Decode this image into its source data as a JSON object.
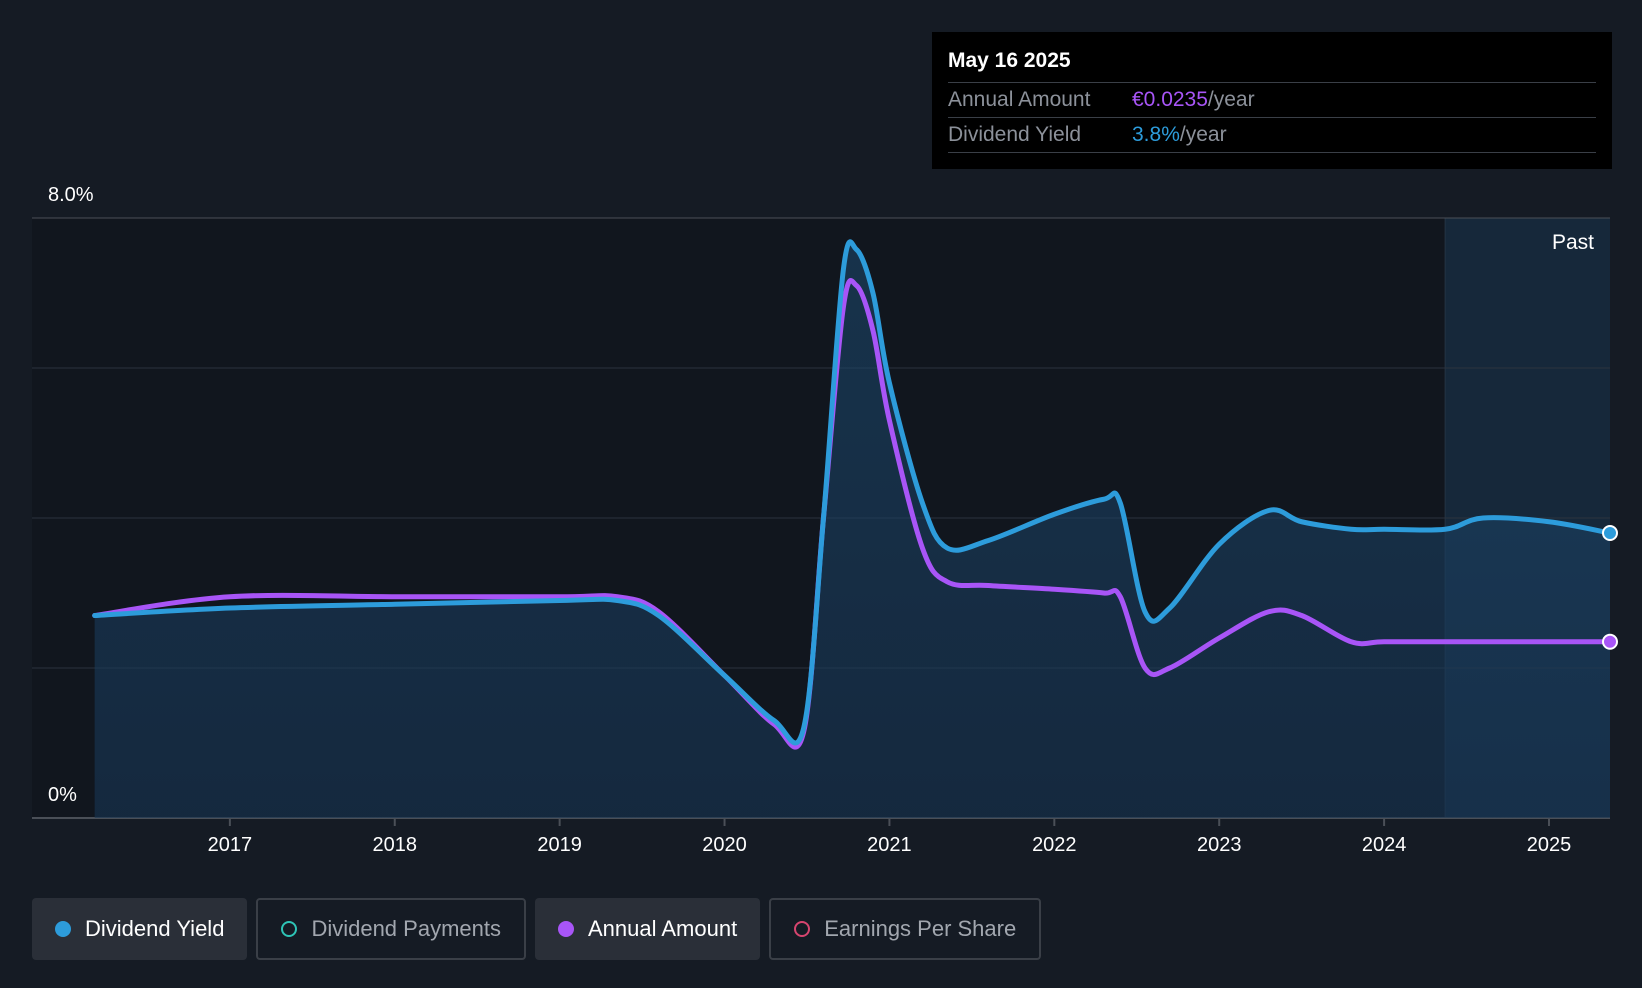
{
  "chart_data": {
    "type": "area",
    "y_axis": {
      "min_label": "0%",
      "max_label": "8.0%",
      "min": 0,
      "max": 8.0,
      "gridlines": [
        0,
        2,
        4,
        6,
        8
      ]
    },
    "x_ticks": [
      "2017",
      "2018",
      "2019",
      "2020",
      "2021",
      "2022",
      "2023",
      "2024",
      "2025"
    ],
    "x_tick_values": [
      2017,
      2018,
      2019,
      2020,
      2021,
      2022,
      2023,
      2024,
      2025
    ],
    "x_range": [
      2015.8,
      2025.37
    ],
    "past_label": "Past",
    "past_start": 2024.37,
    "series": [
      {
        "name": "Dividend Yield",
        "color": "#2d9cdb",
        "filled": true,
        "points": [
          [
            2016.18,
            2.7
          ],
          [
            2017.0,
            2.8
          ],
          [
            2018.0,
            2.85
          ],
          [
            2019.0,
            2.9
          ],
          [
            2019.35,
            2.9
          ],
          [
            2019.6,
            2.7
          ],
          [
            2020.0,
            1.9
          ],
          [
            2020.3,
            1.3
          ],
          [
            2020.48,
            1.2
          ],
          [
            2020.6,
            4.0
          ],
          [
            2020.72,
            7.3
          ],
          [
            2020.8,
            7.58
          ],
          [
            2020.9,
            7.0
          ],
          [
            2021.0,
            5.8
          ],
          [
            2021.2,
            4.2
          ],
          [
            2021.35,
            3.6
          ],
          [
            2021.6,
            3.7
          ],
          [
            2022.0,
            4.05
          ],
          [
            2022.3,
            4.25
          ],
          [
            2022.4,
            4.2
          ],
          [
            2022.55,
            2.75
          ],
          [
            2022.7,
            2.8
          ],
          [
            2023.0,
            3.65
          ],
          [
            2023.3,
            4.1
          ],
          [
            2023.5,
            3.95
          ],
          [
            2023.8,
            3.85
          ],
          [
            2024.0,
            3.85
          ],
          [
            2024.37,
            3.85
          ],
          [
            2024.6,
            4.0
          ],
          [
            2025.0,
            3.95
          ],
          [
            2025.37,
            3.8
          ]
        ]
      },
      {
        "name": "Annual Amount",
        "color": "#a855f7",
        "filled": false,
        "points": [
          [
            2016.18,
            2.7
          ],
          [
            2017.0,
            2.95
          ],
          [
            2018.0,
            2.95
          ],
          [
            2019.0,
            2.95
          ],
          [
            2019.35,
            2.95
          ],
          [
            2019.6,
            2.75
          ],
          [
            2020.0,
            1.9
          ],
          [
            2020.3,
            1.25
          ],
          [
            2020.48,
            1.15
          ],
          [
            2020.6,
            4.0
          ],
          [
            2020.72,
            6.8
          ],
          [
            2020.8,
            7.1
          ],
          [
            2020.9,
            6.5
          ],
          [
            2021.0,
            5.3
          ],
          [
            2021.2,
            3.6
          ],
          [
            2021.35,
            3.15
          ],
          [
            2021.6,
            3.1
          ],
          [
            2022.0,
            3.05
          ],
          [
            2022.3,
            3.0
          ],
          [
            2022.4,
            2.95
          ],
          [
            2022.55,
            2.0
          ],
          [
            2022.7,
            2.0
          ],
          [
            2023.0,
            2.4
          ],
          [
            2023.3,
            2.75
          ],
          [
            2023.5,
            2.7
          ],
          [
            2023.8,
            2.35
          ],
          [
            2024.0,
            2.35
          ],
          [
            2024.37,
            2.35
          ],
          [
            2025.0,
            2.35
          ],
          [
            2025.37,
            2.35
          ]
        ]
      }
    ]
  },
  "tooltip": {
    "date": "May 16 2025",
    "rows": [
      {
        "label": "Annual Amount",
        "value": "€0.0235",
        "unit": "/year"
      },
      {
        "label": "Dividend Yield",
        "value": "3.8%",
        "unit": "/year"
      }
    ]
  },
  "legend": [
    {
      "label": "Dividend Yield",
      "color": "#2d9cdb",
      "active": true
    },
    {
      "label": "Dividend Payments",
      "color": "#2ec4b6",
      "active": false
    },
    {
      "label": "Annual Amount",
      "color": "#a855f7",
      "active": true
    },
    {
      "label": "Earnings Per Share",
      "color": "#d6456f",
      "active": false
    }
  ]
}
